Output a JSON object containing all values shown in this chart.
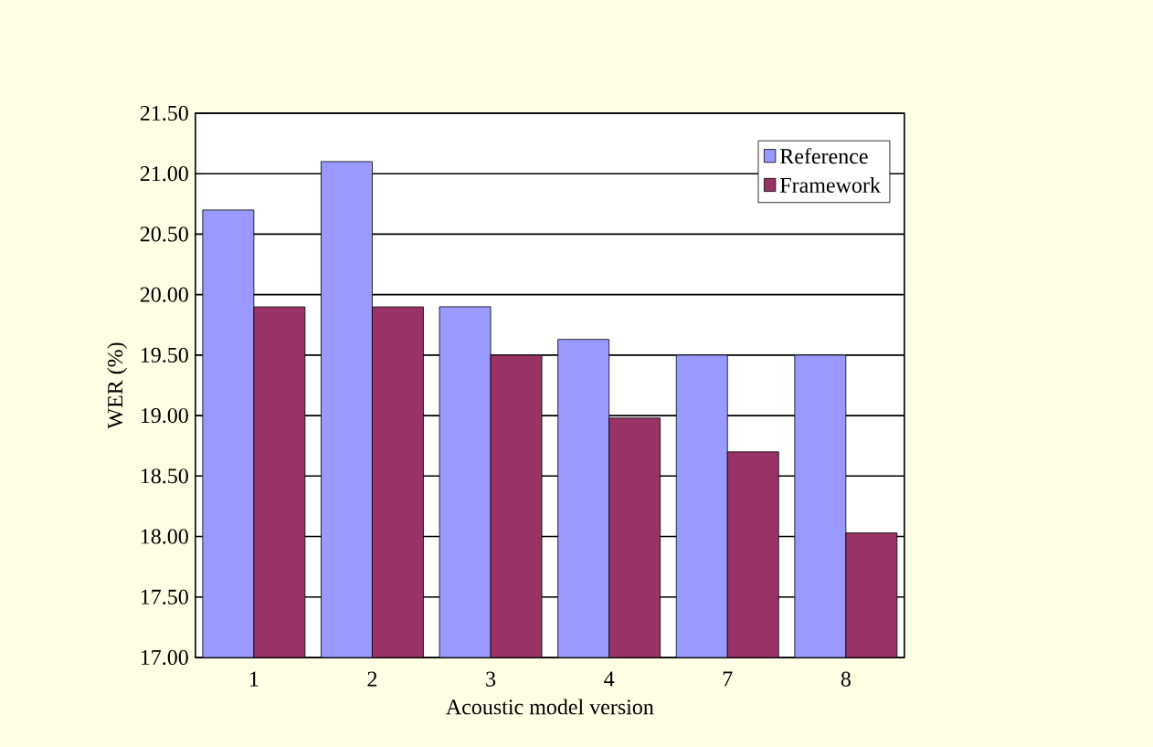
{
  "chart_data": {
    "type": "bar",
    "xlabel": "Acoustic model version",
    "ylabel": "WER (%)",
    "categories": [
      "1",
      "2",
      "3",
      "4",
      "7",
      "8"
    ],
    "series": [
      {
        "name": "Reference",
        "color": "#9999ff",
        "values": [
          20.7,
          21.1,
          19.9,
          19.63,
          19.5,
          19.5
        ]
      },
      {
        "name": "Framework",
        "color": "#993366",
        "values": [
          19.9,
          19.9,
          19.5,
          18.98,
          18.7,
          18.03
        ]
      }
    ],
    "ylim": [
      17.0,
      21.5
    ],
    "yticks": [
      {
        "value": 17.0,
        "label": "17.00"
      },
      {
        "value": 17.5,
        "label": "17.50"
      },
      {
        "value": 18.0,
        "label": "18.00"
      },
      {
        "value": 18.5,
        "label": "18.50"
      },
      {
        "value": 19.0,
        "label": "19.00"
      },
      {
        "value": 19.5,
        "label": "19.50"
      },
      {
        "value": 20.0,
        "label": "20.00"
      },
      {
        "value": 20.5,
        "label": "20.50"
      },
      {
        "value": 21.0,
        "label": "21.00"
      },
      {
        "value": 21.5,
        "label": "21.50"
      }
    ],
    "grid": "y",
    "legend": "top right"
  }
}
